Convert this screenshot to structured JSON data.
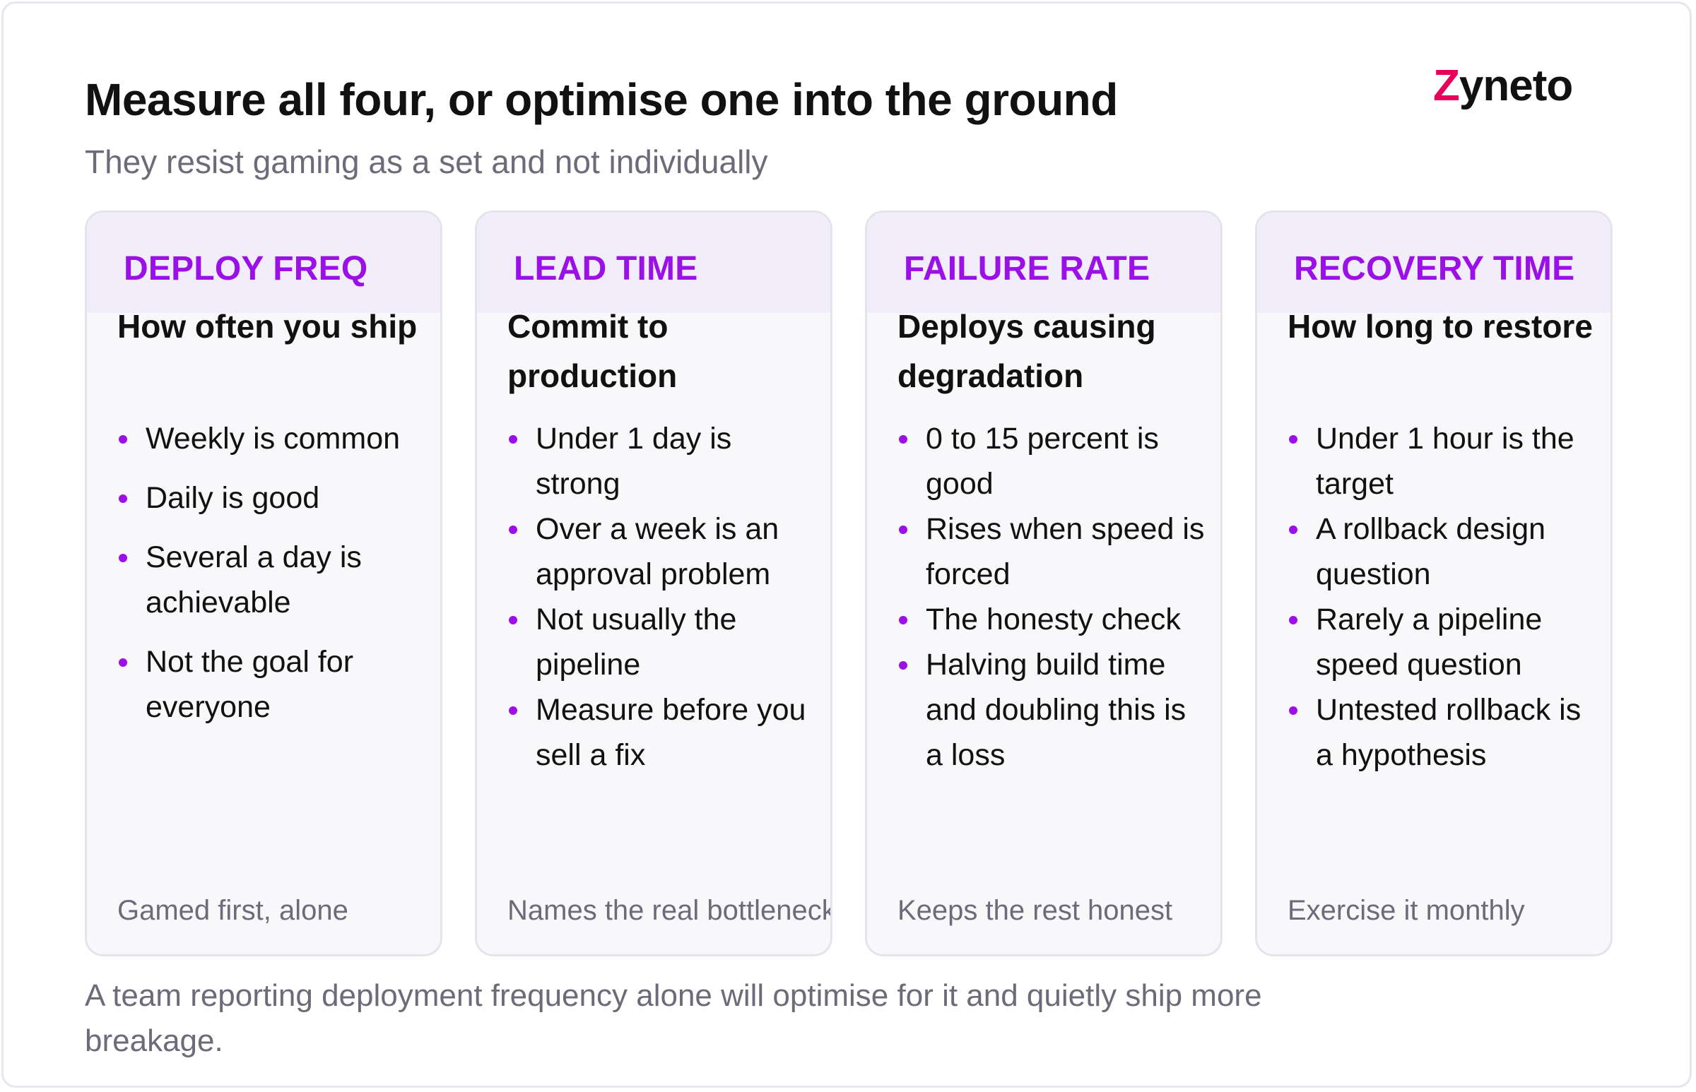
{
  "header": {
    "title": "Measure all four, or optimise one into the ground",
    "subtitle": "They resist gaming as a set and not individually"
  },
  "logo": {
    "z": "Z",
    "rest": "yneto"
  },
  "cards": [
    {
      "tag": "DEPLOY FREQ",
      "heading": "How often you ship",
      "items": [
        "Weekly is common",
        "Daily is good",
        "Several a day is achievable",
        "Not the goal for everyone"
      ],
      "footer": "Gamed first, alone"
    },
    {
      "tag": "LEAD TIME",
      "heading": "Commit to production",
      "items": [
        "Under 1 day is strong",
        "Over a week is an approval problem",
        "Not usually the pipeline",
        "Measure before you sell a fix"
      ],
      "footer": "Names the real bottleneck"
    },
    {
      "tag": "FAILURE RATE",
      "heading": "Deploys causing degradation",
      "items": [
        "0 to 15 percent is good",
        "Rises when speed is forced",
        "The honesty check",
        "Halving build time and doubling this is a loss"
      ],
      "footer": "Keeps the rest honest"
    },
    {
      "tag": "RECOVERY TIME",
      "heading": "How long to restore",
      "items": [
        "Under 1 hour is the target",
        "A rollback design question",
        "Rarely a pipeline speed question",
        "Untested rollback is a hypothesis"
      ],
      "footer": "Exercise it monthly"
    }
  ],
  "bottom_note": "A team reporting deployment frequency alone will optimise for it and quietly ship more breakage.",
  "colors": {
    "accent": "#9b10e6",
    "header_bg": "#f1edfa",
    "muted_text": "#6b6b7a",
    "logo_accent": "#e8005a"
  }
}
